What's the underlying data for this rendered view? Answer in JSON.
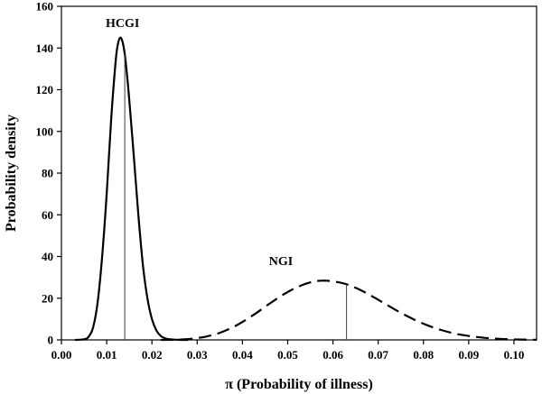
{
  "chart_data": {
    "type": "line",
    "title": "",
    "xlabel": "π (Probability of illness)",
    "ylabel": "Probability density",
    "xlim": [
      0.0,
      0.105
    ],
    "ylim": [
      0,
      160
    ],
    "x_ticks": [
      "0.00",
      "0.01",
      "0.02",
      "0.03",
      "0.04",
      "0.05",
      "0.06",
      "0.07",
      "0.08",
      "0.09",
      "0.10"
    ],
    "x_tick_values": [
      0.0,
      0.01,
      0.02,
      0.03,
      0.04,
      0.05,
      0.06,
      0.07,
      0.08,
      0.09,
      0.1
    ],
    "y_ticks": [
      "0",
      "20",
      "40",
      "60",
      "80",
      "100",
      "120",
      "140",
      "160"
    ],
    "y_tick_values": [
      0,
      20,
      40,
      60,
      80,
      100,
      120,
      140,
      160
    ],
    "grid": false,
    "legend": "none",
    "series": [
      {
        "name": "HCGI",
        "style": "solid",
        "color": "#000000",
        "x": [
          0.003,
          0.005,
          0.006,
          0.007,
          0.008,
          0.009,
          0.01,
          0.011,
          0.012,
          0.0125,
          0.013,
          0.0135,
          0.014,
          0.0145,
          0.015,
          0.016,
          0.017,
          0.018,
          0.019,
          0.02,
          0.021,
          0.022,
          0.023,
          0.024,
          0.026,
          0.028
        ],
        "y": [
          0,
          0.3,
          1.5,
          6,
          18,
          40,
          70,
          106,
          134,
          142,
          145,
          143,
          137,
          127,
          115,
          88,
          60,
          36,
          20,
          10,
          4.5,
          1.8,
          0.7,
          0.3,
          0.05,
          0
        ]
      },
      {
        "name": "NGI",
        "style": "dashed",
        "color": "#000000",
        "x": [
          0.022,
          0.025,
          0.028,
          0.03,
          0.032,
          0.035,
          0.038,
          0.04,
          0.043,
          0.046,
          0.049,
          0.052,
          0.055,
          0.0575,
          0.06,
          0.063,
          0.066,
          0.069,
          0.072,
          0.075,
          0.078,
          0.081,
          0.084,
          0.087,
          0.09,
          0.093,
          0.096,
          0.099,
          0.102,
          0.105
        ],
        "y": [
          0,
          0.1,
          0.4,
          0.9,
          1.6,
          3.4,
          6.2,
          8.6,
          12.8,
          17.4,
          21.7,
          25.2,
          27.6,
          28.4,
          28.1,
          26.7,
          24.0,
          20.5,
          16.7,
          13.0,
          9.7,
          6.9,
          4.7,
          3.0,
          1.9,
          1.1,
          0.6,
          0.3,
          0.15,
          0.05
        ]
      }
    ],
    "annotations": [
      {
        "text": "HCGI",
        "x": 0.0135,
        "y": 150
      },
      {
        "text": "NGI",
        "x": 0.0485,
        "y": 36
      }
    ],
    "reference_lines": [
      {
        "x": 0.014,
        "y_top": 137
      },
      {
        "x": 0.063,
        "y_top": 26.7
      }
    ]
  }
}
